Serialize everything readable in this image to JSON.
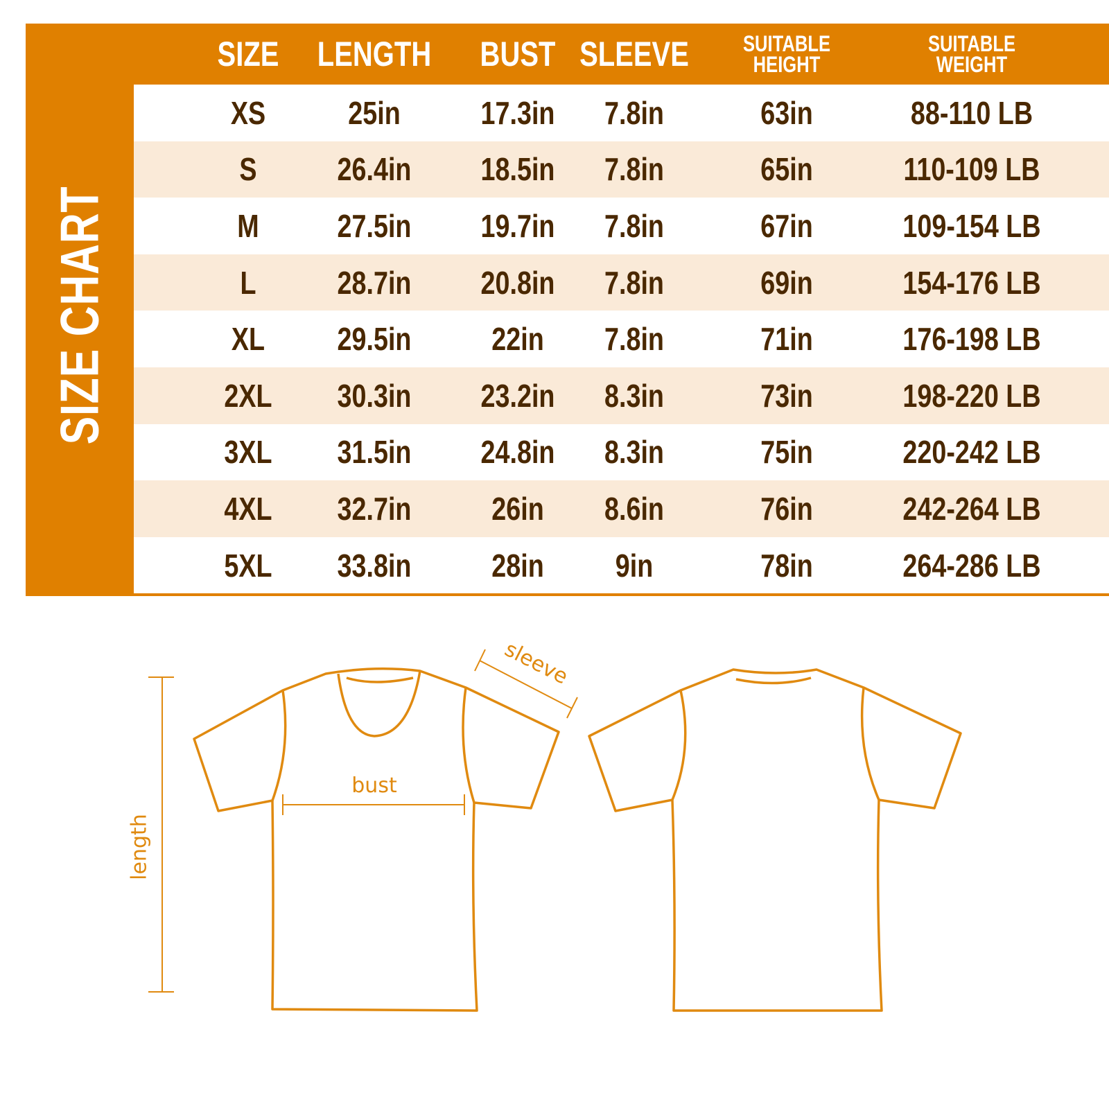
{
  "side_title": "SIZE CHART",
  "colors": {
    "accent": "#E08000",
    "text": "#4A2800",
    "alt_row": "#FAEAD8"
  },
  "chart_data": {
    "type": "table",
    "columns": [
      "SIZE",
      "LENGTH",
      "BUST",
      "SLEEVE",
      "SUITABLE HEIGHT",
      "SUITABLE WEIGHT"
    ],
    "header_lines": [
      [
        "SIZE"
      ],
      [
        "LENGTH"
      ],
      [
        "BUST"
      ],
      [
        "SLEEVE"
      ],
      [
        "SUITABLE",
        "HEIGHT"
      ],
      [
        "SUITABLE",
        "WEIGHT"
      ]
    ],
    "rows": [
      [
        "XS",
        "25in",
        "17.3in",
        "7.8in",
        "63in",
        "88-110 LB"
      ],
      [
        "S",
        "26.4in",
        "18.5in",
        "7.8in",
        "65in",
        "110-109 LB"
      ],
      [
        "M",
        "27.5in",
        "19.7in",
        "7.8in",
        "67in",
        "109-154 LB"
      ],
      [
        "L",
        "28.7in",
        "20.8in",
        "7.8in",
        "69in",
        "154-176 LB"
      ],
      [
        "XL",
        "29.5in",
        "22in",
        "7.8in",
        "71in",
        "176-198 LB"
      ],
      [
        "2XL",
        "30.3in",
        "23.2in",
        "8.3in",
        "73in",
        "198-220 LB"
      ],
      [
        "3XL",
        "31.5in",
        "24.8in",
        "8.3in",
        "75in",
        "220-242 LB"
      ],
      [
        "4XL",
        "32.7in",
        "26in",
        "8.6in",
        "76in",
        "242-264 LB"
      ],
      [
        "5XL",
        "33.8in",
        "28in",
        "9in",
        "78in",
        "264-286 LB"
      ]
    ]
  },
  "diagram": {
    "sleeve_label": "sleeve",
    "bust_label": "bust",
    "length_label": "length"
  }
}
